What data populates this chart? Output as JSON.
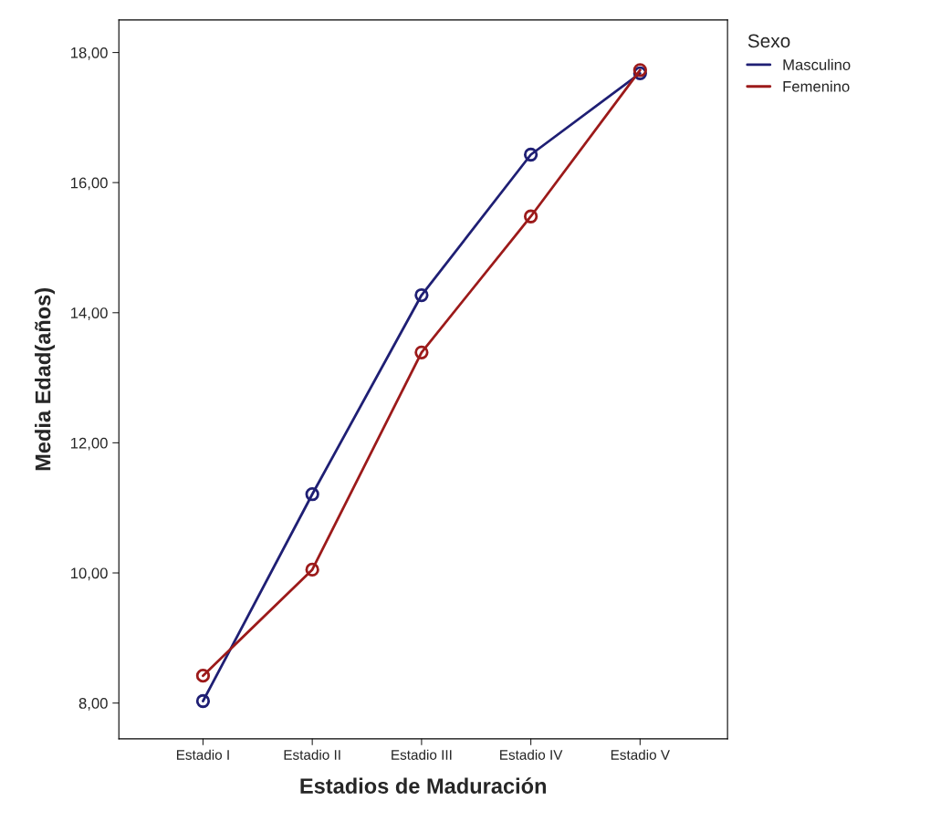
{
  "chart_data": {
    "type": "line",
    "xlabel": "Estadios de Maduración",
    "ylabel": "Media Edad(años)",
    "legend_title": "Sexo",
    "categories": [
      "Estadio I",
      "Estadio II",
      "Estadio III",
      "Estadio IV",
      "Estadio V"
    ],
    "series": [
      {
        "name": "Masculino",
        "color": "#1f1f74",
        "values": [
          8.03,
          11.21,
          14.27,
          16.43,
          17.68
        ]
      },
      {
        "name": "Femenino",
        "color": "#9c1a1a",
        "values": [
          8.42,
          10.05,
          13.39,
          15.48,
          17.73
        ]
      }
    ],
    "ylim": [
      7.45,
      18.5
    ],
    "yticks": [
      {
        "value": 8,
        "label": "8,00"
      },
      {
        "value": 10,
        "label": "10,00"
      },
      {
        "value": 12,
        "label": "12,00"
      },
      {
        "value": 14,
        "label": "14,00"
      },
      {
        "value": 16,
        "label": "16,00"
      },
      {
        "value": 18,
        "label": "18,00"
      }
    ],
    "marker": "circle",
    "line_style": "solid",
    "grid": false,
    "legend": "top right"
  }
}
